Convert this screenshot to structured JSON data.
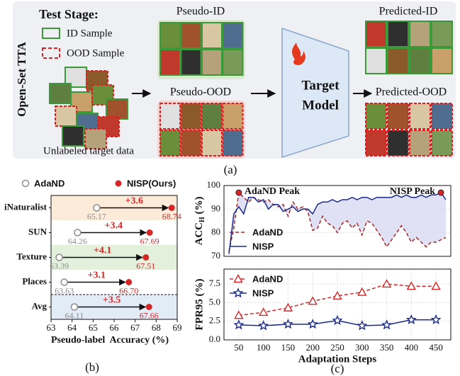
{
  "figure_a": {
    "side_label": "Open-Set TTA",
    "legend_title": "Test Stage:",
    "legend": [
      "ID Sample",
      "OOD Sample"
    ],
    "source": "Unlabeled target data",
    "pseudo_id": "Pseudo-ID",
    "pseudo_ood": "Pseudo-OOD",
    "model": [
      "Target",
      "Model"
    ],
    "predicted_id": "Predicted-ID",
    "predicted_ood": "Predicted-OOD",
    "caption": "(a)"
  },
  "chart_data": [
    {
      "type": "dumbbell",
      "categories": [
        "iNaturalist",
        "SUN",
        "Texture",
        "Places",
        "Avg"
      ],
      "series": [
        {
          "name": "AdaND",
          "color": "#8c8c8c",
          "values": [
            65.17,
            64.26,
            63.39,
            63.63,
            64.11
          ],
          "value_labels": [
            "65.17",
            "64.26",
            "63.39",
            "63.63",
            "64.11"
          ]
        },
        {
          "name": "NISP(Ours)",
          "color": "#d62728",
          "values": [
            68.74,
            67.69,
            67.51,
            66.7,
            67.66
          ],
          "value_labels": [
            "68.74",
            "67.69",
            "67.51",
            "66.70",
            "67.66"
          ]
        }
      ],
      "gains": {
        "values": [
          3.6,
          3.4,
          4.1,
          3.1,
          3.5
        ],
        "value_labels": [
          "+3.6",
          "+3.4",
          "+4.1",
          "+3.1",
          "+3.5"
        ]
      },
      "row_colors": [
        "#fcebd9",
        "#ffffff",
        "#e3f1dc",
        "#ffffff",
        "#e2ecf7"
      ],
      "xlim": [
        63,
        69
      ],
      "xticks": [
        63,
        64,
        65,
        66,
        67,
        68,
        69
      ],
      "xlabel": "Pseudo-label  Accuracy (%)",
      "caption": "(b)"
    },
    {
      "type": "line",
      "ylabel": [
        "ACC",
        "H",
        " (%)"
      ],
      "x": [
        30,
        40,
        50,
        60,
        70,
        80,
        90,
        100,
        110,
        120,
        130,
        140,
        150,
        160,
        170,
        180,
        190,
        200,
        210,
        220,
        230,
        240,
        250,
        260,
        270,
        280,
        290,
        300,
        310,
        320,
        330,
        340,
        350,
        360,
        370,
        380,
        390,
        400,
        410,
        420,
        430,
        440,
        450,
        460,
        470
      ],
      "series": [
        {
          "name": "AdaND",
          "color": "#a52a2a",
          "dash": true,
          "values": [
            72,
            82,
            97,
            95,
            93,
            95,
            94,
            93,
            94,
            92,
            91,
            92,
            87,
            93,
            90,
            91,
            89,
            81,
            82,
            87,
            84,
            83,
            80,
            84,
            85,
            82,
            84,
            79,
            85,
            84,
            81,
            78,
            74,
            77,
            80,
            83,
            80,
            76,
            78,
            76,
            74,
            76,
            76,
            77,
            78
          ]
        },
        {
          "name": "NISP",
          "color": "#1a2a8c",
          "dash": false,
          "values": [
            71,
            88,
            91,
            88,
            95,
            95,
            93,
            94,
            90,
            92,
            92,
            89,
            90,
            91,
            89,
            90,
            90,
            88,
            92,
            93,
            93,
            94,
            93,
            94,
            94,
            95,
            94,
            95,
            95,
            94,
            95,
            95,
            95,
            95,
            96,
            95,
            96,
            95,
            95,
            96,
            95,
            96,
            96,
            97,
            94
          ]
        }
      ],
      "fill_between": "#d9d9f2",
      "peaks": [
        {
          "label": "AdaND Peak",
          "x": 50,
          "y": 97
        },
        {
          "label": "NISP Peak",
          "x": 460,
          "y": 97
        }
      ],
      "xlim": [
        20,
        480
      ],
      "ylim": [
        70,
        100
      ],
      "yticks": [
        70,
        80,
        90,
        100
      ],
      "grid": true
    },
    {
      "type": "line",
      "ylabel": "FPR95 (%)",
      "x": [
        50,
        100,
        150,
        200,
        250,
        300,
        350,
        400,
        450
      ],
      "series": [
        {
          "name": "AdaND",
          "color": "#d62728",
          "dash": true,
          "marker": "triangle",
          "values": [
            3.3,
            3.7,
            4.3,
            5.2,
            5.9,
            6.4,
            7.5,
            7.2,
            7.2
          ]
        },
        {
          "name": "NISP",
          "color": "#1a2a8c",
          "dash": false,
          "marker": "star",
          "values": [
            2.0,
            1.9,
            2.1,
            2.1,
            2.6,
            1.9,
            2.0,
            2.7,
            2.7
          ]
        }
      ],
      "xlim": [
        20,
        480
      ],
      "xticks": [
        50,
        100,
        150,
        200,
        250,
        300,
        350,
        400,
        450
      ],
      "xlabel": "Adaptation Steps",
      "ylim": [
        0,
        9.5
      ],
      "yticks": [
        {
          "value": 0,
          "label": "0.0"
        },
        {
          "value": 2.5,
          "label": "2.5"
        },
        {
          "value": 5,
          "label": "5.0"
        },
        {
          "value": 7.5,
          "label": "7.5"
        }
      ],
      "grid": true,
      "caption": "(c)"
    }
  ]
}
